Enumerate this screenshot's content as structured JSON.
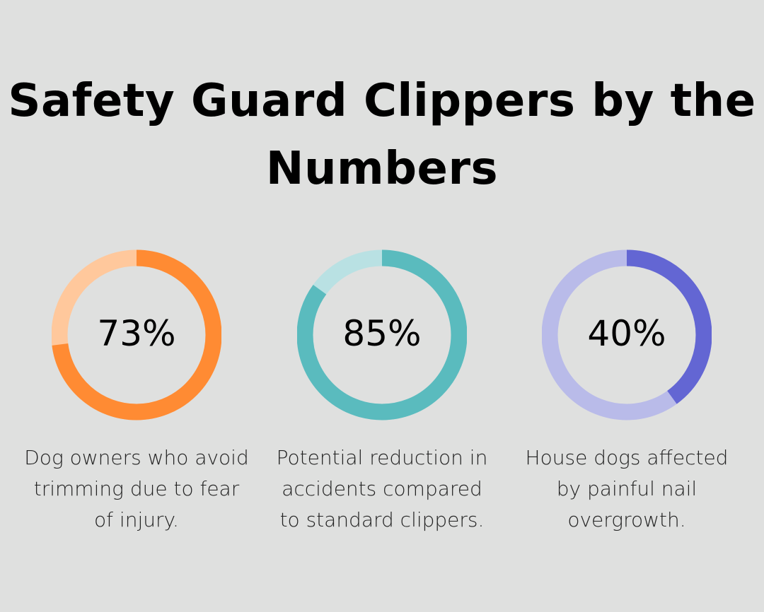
{
  "title": "Safety Guard Clippers by the Numbers",
  "chart_data": [
    {
      "type": "pie",
      "variant": "donut",
      "value": 73,
      "label": "73%",
      "description": "Dog owners who avoid trimming due to fear of injury.",
      "color": "#ff8b33",
      "track_color": "#ffc89c"
    },
    {
      "type": "pie",
      "variant": "donut",
      "value": 85,
      "label": "85%",
      "description": "Potential reduction in accidents compared to standard clippers.",
      "color": "#5abbbe",
      "track_color": "#b9e1e3"
    },
    {
      "type": "pie",
      "variant": "donut",
      "value": 40,
      "label": "40%",
      "description": "House dogs affected by painful nail overgrowth.",
      "color": "#6366d3",
      "track_color": "#b9bbe9"
    }
  ]
}
